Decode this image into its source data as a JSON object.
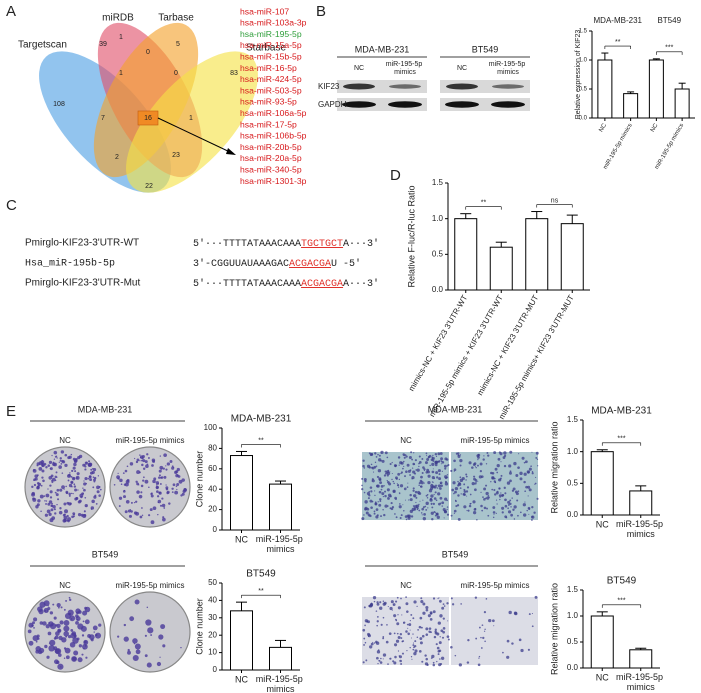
{
  "panels": [
    "A",
    "B",
    "C",
    "D",
    "E"
  ],
  "venn": {
    "sets": [
      {
        "name": "Targetscan",
        "color": "#4f9fe3"
      },
      {
        "name": "miRDB",
        "color": "#e0506a"
      },
      {
        "name": "Tarbase",
        "color": "#f3a12c"
      },
      {
        "name": "Starbase",
        "color": "#f6e246"
      }
    ],
    "counts": [
      39,
      1,
      0,
      5,
      108,
      1,
      0,
      83,
      7,
      16,
      1,
      2,
      23,
      22
    ]
  },
  "mirnas": [
    {
      "name": "hsa-miR-107",
      "color": "#d7191c"
    },
    {
      "name": "hsa-miR-103a-3p",
      "color": "#d7191c"
    },
    {
      "name": "hsa-miR-195-5p",
      "color": "#2e9e3a"
    },
    {
      "name": "hsa-miR-15a-5p",
      "color": "#d7191c"
    },
    {
      "name": "hsa-miR-15b-5p",
      "color": "#d7191c"
    },
    {
      "name": "hsa-miR-16-5p",
      "color": "#d7191c"
    },
    {
      "name": "hsa-miR-424-5p",
      "color": "#d7191c"
    },
    {
      "name": "hsa-miR-503-5p",
      "color": "#d7191c"
    },
    {
      "name": "hsa-miR-93-5p",
      "color": "#d7191c"
    },
    {
      "name": "hsa-miR-106a-5p",
      "color": "#d7191c"
    },
    {
      "name": "hsa-miR-17-5p",
      "color": "#d7191c"
    },
    {
      "name": "hsa-miR-106b-5p",
      "color": "#d7191c"
    },
    {
      "name": "hsa-miR-20b-5p",
      "color": "#d7191c"
    },
    {
      "name": "hsa-miR-20a-5p",
      "color": "#d7191c"
    },
    {
      "name": "hsa-miR-340-5p",
      "color": "#d7191c"
    },
    {
      "name": "hsa-miR-1301-3p",
      "color": "#d7191c"
    }
  ],
  "blot": {
    "cell_lines": [
      "MDA-MB-231",
      "BT549"
    ],
    "lanes": [
      "NC",
      "miR-195-5p mimics"
    ],
    "proteins": [
      "KIF23",
      "GAPDH"
    ]
  },
  "sequences": [
    {
      "name": "Pmirglo-KIF23-3'UTR-WT",
      "prefix": "5′···TTTTATAAACAAA",
      "site": "TGCTGCT",
      "suffix": "A···3′"
    },
    {
      "name": "Hsa_miR-195b-5p",
      "prefix": "3′-CGGUUAUAAAGAC",
      "site": "ACGACGA",
      "suffix": "U -5′"
    },
    {
      "name": "Pmirglo-KIF23-3'UTR-Mut",
      "prefix": "5′···TTTTATAAACAAA",
      "site": "ACGACGA",
      "suffix": "A···3′"
    }
  ],
  "assays": {
    "cell_lines": [
      "MDA-MB-231",
      "BT549"
    ],
    "lanes": [
      "NC",
      "miR-195-5p mimics"
    ]
  },
  "chart_data": [
    {
      "type": "bar",
      "ylabel": "Relative expression of KIF23",
      "groups": [
        "MDA-MB-231",
        "BT549"
      ],
      "categories": [
        "NC",
        "miR-195-5p mimics",
        "NC",
        "miR-195-5p mimics"
      ],
      "values": [
        1.0,
        0.42,
        1.0,
        0.5
      ],
      "errors": [
        0.12,
        0.03,
        0.02,
        0.1
      ],
      "annotations": [
        "**",
        "***"
      ],
      "color": "#ffffff",
      "ylim": [
        0,
        1.5
      ],
      "yticks": [
        {
          "value": 0,
          "label": "0.0"
        },
        {
          "value": 0.5,
          "label": "0.5"
        },
        {
          "value": 1,
          "label": "1.0"
        },
        {
          "value": 1.5,
          "label": "1.5"
        }
      ]
    },
    {
      "type": "bar",
      "ylabel": "Relative F-luc/R-luc Ratio",
      "categories": [
        "mimics-NC + KIF23 3'UTR-WT",
        "miR-195-5p mimics + KIF23 3'UTR-WT",
        "mimics-NC + KIF23 3'UTR-MUT",
        "miR-195-5p mimics+ KIF23 3'UTR-MUT"
      ],
      "values": [
        1.0,
        0.6,
        1.0,
        0.93
      ],
      "errors": [
        0.07,
        0.07,
        0.1,
        0.12
      ],
      "annotations": [
        "**",
        "ns"
      ],
      "color": "#ffffff",
      "ylim": [
        0,
        1.5
      ],
      "yticks": [
        {
          "value": 0,
          "label": "0.0"
        },
        {
          "value": 0.5,
          "label": "0.5"
        },
        {
          "value": 1,
          "label": "1.0"
        },
        {
          "value": 1.5,
          "label": "1.5"
        }
      ]
    },
    {
      "type": "bar",
      "title": "MDA-MB-231",
      "ylabel": "Clone number",
      "categories": [
        "NC",
        "miR-195-5p mimics"
      ],
      "values": [
        73,
        45
      ],
      "errors": [
        4,
        3
      ],
      "annotations": [
        "**"
      ],
      "color": "#ffffff",
      "ylim": [
        0,
        100
      ],
      "yticks": [
        0,
        20,
        40,
        60,
        80,
        100
      ]
    },
    {
      "type": "bar",
      "title": "BT549",
      "ylabel": "Clone number",
      "categories": [
        "NC",
        "miR-195-5p mimics"
      ],
      "values": [
        34,
        13
      ],
      "errors": [
        5,
        4
      ],
      "annotations": [
        "**"
      ],
      "color": "#ffffff",
      "ylim": [
        0,
        50
      ],
      "yticks": [
        0,
        10,
        20,
        30,
        40,
        50
      ]
    },
    {
      "type": "bar",
      "title": "MDA-MB-231",
      "ylabel": "Relative migration ratio",
      "categories": [
        "NC",
        "miR-195-5p mimics"
      ],
      "values": [
        1.0,
        0.38
      ],
      "errors": [
        0.03,
        0.08
      ],
      "annotations": [
        "***"
      ],
      "color": "#ffffff",
      "ylim": [
        0,
        1.5
      ],
      "yticks": [
        {
          "value": 0,
          "label": "0.0"
        },
        {
          "value": 0.5,
          "label": "0.5"
        },
        {
          "value": 1,
          "label": "1.0"
        },
        {
          "value": 1.5,
          "label": "1.5"
        }
      ]
    },
    {
      "type": "bar",
      "title": "BT549",
      "ylabel": "Relative migration ratio",
      "categories": [
        "NC",
        "miR-195-5p mimics"
      ],
      "values": [
        1.0,
        0.35
      ],
      "errors": [
        0.08,
        0.03
      ],
      "annotations": [
        "***"
      ],
      "color": "#ffffff",
      "ylim": [
        0,
        1.5
      ],
      "yticks": [
        {
          "value": 0,
          "label": "0.0"
        },
        {
          "value": 0.5,
          "label": "0.5"
        },
        {
          "value": 1,
          "label": "1.0"
        },
        {
          "value": 1.5,
          "label": "1.5"
        }
      ]
    }
  ]
}
